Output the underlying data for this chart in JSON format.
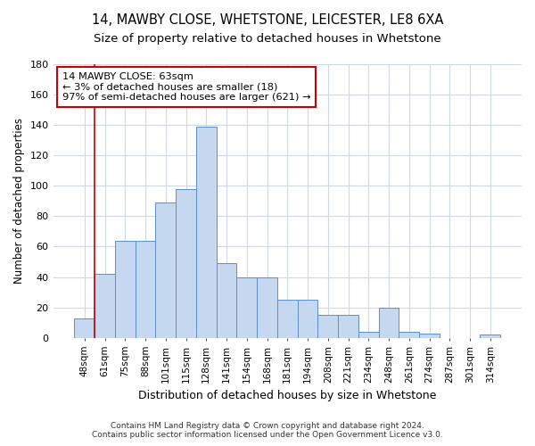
{
  "title1": "14, MAWBY CLOSE, WHETSTONE, LEICESTER, LE8 6XA",
  "title2": "Size of property relative to detached houses in Whetstone",
  "xlabel": "Distribution of detached houses by size in Whetstone",
  "ylabel": "Number of detached properties",
  "categories": [
    "48sqm",
    "61sqm",
    "75sqm",
    "88sqm",
    "101sqm",
    "115sqm",
    "128sqm",
    "141sqm",
    "154sqm",
    "168sqm",
    "181sqm",
    "194sqm",
    "208sqm",
    "221sqm",
    "234sqm",
    "248sqm",
    "261sqm",
    "274sqm",
    "287sqm",
    "301sqm",
    "314sqm"
  ],
  "values": [
    13,
    42,
    64,
    64,
    89,
    98,
    139,
    49,
    40,
    40,
    25,
    25,
    15,
    15,
    4,
    20,
    4,
    3,
    0,
    0,
    2
  ],
  "bar_color": "#c5d8f0",
  "bar_edge_color": "#5b8dd4",
  "annotation_text_line1": "14 MAWBY CLOSE: 63sqm",
  "annotation_text_line2": "← 3% of detached houses are smaller (18)",
  "annotation_text_line3": "97% of semi-detached houses are larger (621) →",
  "annotation_box_color": "#ffffff",
  "annotation_box_edge_color": "#cc0000",
  "vline_color": "#cc0000",
  "ylim": [
    0,
    180
  ],
  "yticks": [
    0,
    20,
    40,
    60,
    80,
    100,
    120,
    140,
    160,
    180
  ],
  "footer_line1": "Contains HM Land Registry data © Crown copyright and database right 2024.",
  "footer_line2": "Contains public sector information licensed under the Open Government Licence v3.0.",
  "bg_color": "#ffffff",
  "plot_bg_color": "#ffffff",
  "grid_color": "#d0d8e8"
}
